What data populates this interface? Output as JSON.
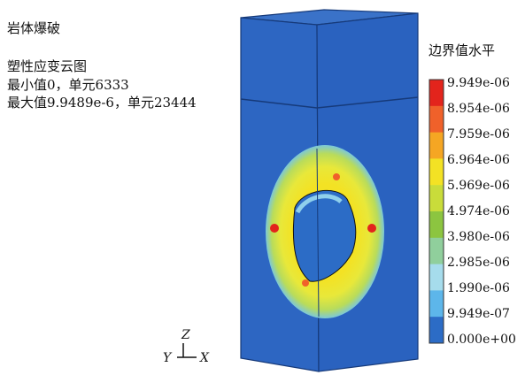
{
  "header": {
    "title": "岩体爆破",
    "subtitle": "塑性应变云图",
    "min_line": "最小值0，单元6333",
    "max_line": "最大值9.9489e-6，单元23444"
  },
  "legend": {
    "title": "边界值水平",
    "labels": [
      "9.949e-06",
      "8.954e-06",
      "7.959e-06",
      "6.964e-06",
      "5.969e-06",
      "4.974e-06",
      "3.980e-06",
      "2.985e-06",
      "1.990e-06",
      "9.949e-07",
      "0.000e+00"
    ],
    "colors": [
      "#e3241c",
      "#f0612a",
      "#f5a623",
      "#f3e224",
      "#c9dc3a",
      "#8cc540",
      "#90cf9c",
      "#a6dcec",
      "#5db6ea",
      "#2c6cc6"
    ]
  },
  "axes": {
    "z": "Z",
    "y": "Y",
    "x": "X"
  }
}
